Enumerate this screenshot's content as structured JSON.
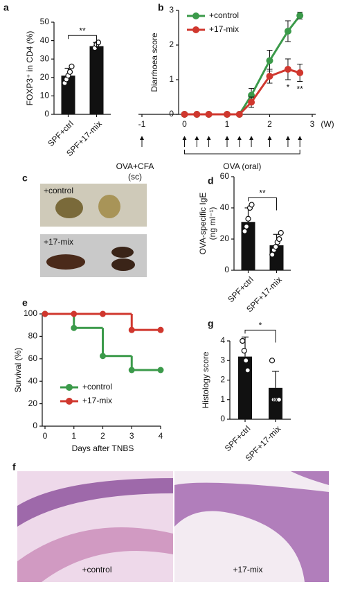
{
  "chart_data": [
    {
      "panel": "a",
      "type": "bar",
      "ylabel": "FOXP3⁺ in CD4 (%)",
      "categories": [
        "SPF+ctrl",
        "SPF+17-mix"
      ],
      "values": [
        21,
        37
      ],
      "errors": [
        4,
        2
      ],
      "points": [
        [
          17,
          19,
          21,
          23,
          26
        ],
        [
          36,
          38,
          39
        ]
      ],
      "color": "#111111",
      "ylim": [
        0,
        50
      ],
      "yticks": [
        0,
        10,
        20,
        30,
        40,
        50
      ],
      "significance": "**"
    },
    {
      "panel": "b",
      "type": "line",
      "ylabel": "Diarrhoea score",
      "x": [
        0,
        0.29,
        0.57,
        1,
        1.29,
        1.57,
        2,
        2.43,
        2.71
      ],
      "xlim": [
        -1,
        3
      ],
      "xticks": [
        -1,
        0,
        1,
        2,
        3
      ],
      "xunit": "(W)",
      "ylim": [
        0,
        3
      ],
      "yticks": [
        0,
        1,
        2,
        3
      ],
      "legend": "upper left",
      "series": [
        {
          "name": "+control",
          "color": "#3b9a4a",
          "values": [
            0,
            0,
            0,
            0,
            0,
            0.55,
            1.55,
            2.4,
            2.85
          ],
          "errors": [
            null,
            null,
            null,
            null,
            null,
            0.2,
            0.3,
            0.3,
            0.1
          ]
        },
        {
          "name": "+17-mix",
          "color": "#d0372e",
          "values": [
            0,
            0,
            0,
            0,
            0,
            0.35,
            1.1,
            1.3,
            1.2
          ],
          "errors": [
            null,
            null,
            null,
            null,
            null,
            0.15,
            0.2,
            0.3,
            0.25
          ],
          "labels": [
            null,
            null,
            null,
            null,
            null,
            null,
            null,
            "*",
            "**"
          ]
        }
      ],
      "annotations": [
        "OVA+CFA",
        "(sc)",
        "OVA (oral)"
      ]
    },
    {
      "panel": "d",
      "type": "bar",
      "ylabel": [
        "OVA-specific IgE",
        "(ng ml⁻¹)"
      ],
      "categories": [
        "SPF+ctrl",
        "SPF+17-mix"
      ],
      "values": [
        31,
        16
      ],
      "errors": [
        9,
        7
      ],
      "points": [
        [
          25,
          28,
          33,
          40,
          42
        ],
        [
          10,
          13,
          15,
          18,
          20,
          24
        ]
      ],
      "color": "#111111",
      "ylim": [
        0,
        60
      ],
      "yticks": [
        0,
        20,
        40,
        60
      ],
      "significance": "**"
    },
    {
      "panel": "e",
      "type": "step",
      "xlabel": "Days after TNBS",
      "ylabel": "Survival (%)",
      "x": [
        0,
        1,
        2,
        3,
        4
      ],
      "xlim": [
        0,
        4
      ],
      "xticks": [
        0,
        1,
        2,
        3,
        4
      ],
      "ylim": [
        0,
        100
      ],
      "yticks": [
        0,
        20,
        40,
        60,
        80,
        100
      ],
      "legend": "lower left",
      "series": [
        {
          "name": "+control",
          "color": "#3b9a4a",
          "values": [
            100,
            87.5,
            62.5,
            50,
            50
          ]
        },
        {
          "name": "+17-mix",
          "color": "#d0372e",
          "values": [
            100,
            100,
            100,
            85.7,
            85.7
          ]
        }
      ]
    },
    {
      "panel": "g",
      "type": "bar",
      "ylabel": "Histology score",
      "categories": [
        "SPF+ctrl",
        "SPF+17-mix"
      ],
      "values": [
        3.2,
        1.6
      ],
      "errors": [
        1.0,
        0.85
      ],
      "points": [
        [
          4.0,
          3.5,
          3.0,
          2.5
        ],
        [
          3.0,
          1.0,
          1.0,
          1.0,
          1.0
        ]
      ],
      "color": "#111111",
      "ylim": [
        0,
        4
      ],
      "yticks": [
        0,
        1,
        2,
        3,
        4
      ],
      "significance": "*"
    }
  ],
  "images": [
    {
      "panel": "c",
      "labels": [
        "+control",
        "+17-mix"
      ]
    },
    {
      "panel": "f",
      "labels": [
        "+control",
        "+17-mix"
      ]
    }
  ]
}
